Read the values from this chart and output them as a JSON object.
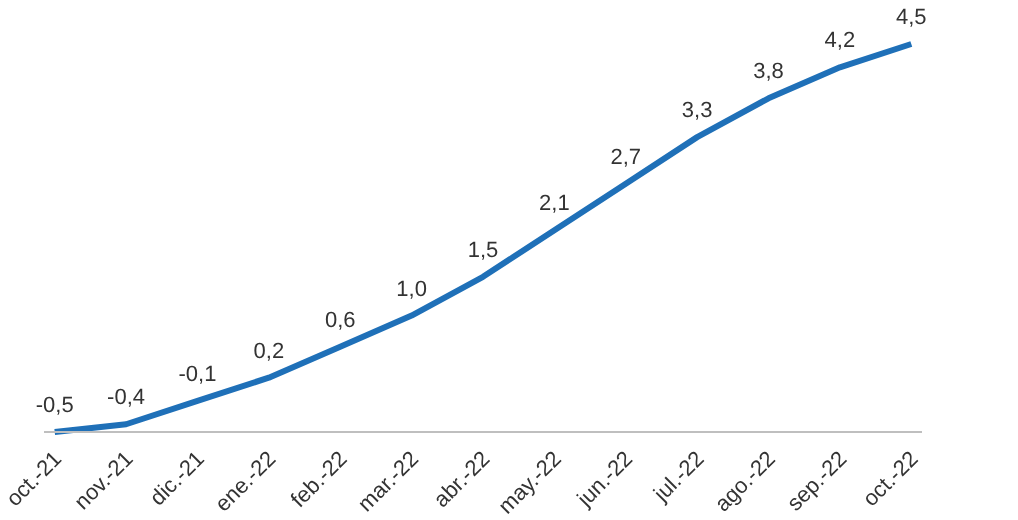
{
  "chart_data": {
    "type": "line",
    "categories": [
      "oct.-21",
      "nov.-21",
      "dic.-21",
      "ene.-22",
      "feb.-22",
      "mar.-22",
      "abr.-22",
      "may.-22",
      "jun.-22",
      "jul.-22",
      "ago.-22",
      "sep.-22",
      "oct.-22"
    ],
    "series": [
      {
        "color": "#1f70b8",
        "values": [
          -0.5,
          -0.4,
          -0.1,
          0.2,
          0.6,
          1.0,
          1.5,
          2.1,
          2.7,
          3.3,
          3.8,
          4.2,
          4.5
        ],
        "value_labels": [
          "-0,5",
          "-0,4",
          "-0,1",
          "0,2",
          "0,6",
          "1,0",
          "1,5",
          "2,1",
          "2,7",
          "3,3",
          "3,8",
          "4,2",
          "4,5"
        ]
      }
    ],
    "marker": "none",
    "grid": false,
    "legend": false
  }
}
